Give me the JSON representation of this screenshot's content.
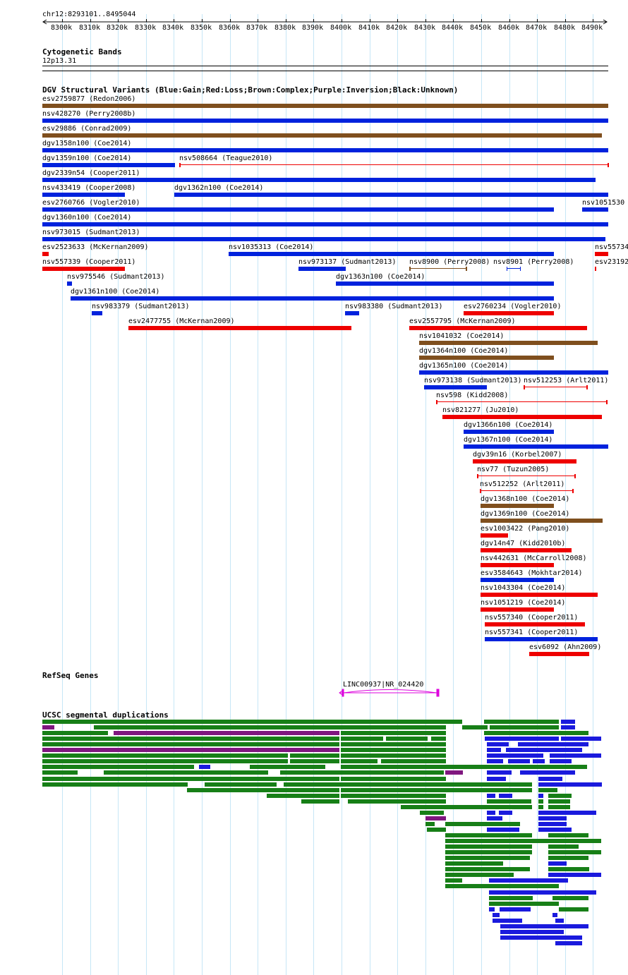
{
  "position_label": "chr12:8293101..8495044",
  "ruler": {
    "ticks": [
      "8300k",
      "8310k",
      "8320k",
      "8330k",
      "8340k",
      "8350k",
      "8360k",
      "8370k",
      "8380k",
      "8390k",
      "8400k",
      "8410k",
      "8420k",
      "8430k",
      "8440k",
      "8450k",
      "8460k",
      "8470k",
      "8480k",
      "8490k"
    ]
  },
  "cytoband": {
    "title": "Cytogenetic Bands",
    "band": "12p13.31"
  },
  "dgv": {
    "title": "DGV Structural Variants (Blue:Gain;Red:Loss;Brown:Complex;Purple:Inversion;Black:Unknown)",
    "colors": {
      "gain": "#0022dd",
      "loss": "#ee0000",
      "complex": "#7f4f1e",
      "inversion": "#800080"
    },
    "variants": [
      {
        "label": "esv2759877 (Redon2006)",
        "type": "complex"
      },
      {
        "label": "nsv428270 (Perry2008b)",
        "type": "gain"
      },
      {
        "label": "esv29886 (Conrad2009)",
        "type": "complex"
      },
      {
        "label": "dgv1358n100 (Coe2014)",
        "type": "gain"
      },
      {
        "label": "dgv1359n100 (Coe2014)",
        "type": "gain"
      },
      {
        "label": "nsv508664 (Teague2010)",
        "type": "loss"
      },
      {
        "label": "dgv2339n54 (Cooper2011)",
        "type": "gain"
      },
      {
        "label": "nsv433419 (Cooper2008)",
        "type": "gain"
      },
      {
        "label": "dgv1362n100 (Coe2014)",
        "type": "gain"
      },
      {
        "label": "esv2760766 (Vogler2010)",
        "type": "gain"
      },
      {
        "label": "nsv1051530",
        "type": "gain"
      },
      {
        "label": "dgv1360n100 (Coe2014)",
        "type": "gain"
      },
      {
        "label": "nsv973015 (Sudmant2013)",
        "type": "gain"
      },
      {
        "label": "esv2523633 (McKernan2009)",
        "type": "loss"
      },
      {
        "label": "nsv1035313 (Coe2014)",
        "type": "gain"
      },
      {
        "label": "nsv55734",
        "type": "loss"
      },
      {
        "label": "nsv557339 (Cooper2011)",
        "type": "loss"
      },
      {
        "label": "nsv973137 (Sudmant2013)",
        "type": "gain"
      },
      {
        "label": "nsv8900 (Perry2008)",
        "type": "complex"
      },
      {
        "label": "nsv8901 (Perry2008)",
        "type": "gain"
      },
      {
        "label": "esv23192",
        "type": "loss"
      },
      {
        "label": "nsv975546 (Sudmant2013)",
        "type": "gain"
      },
      {
        "label": "dgv1363n100 (Coe2014)",
        "type": "gain"
      },
      {
        "label": "dgv1361n100 (Coe2014)",
        "type": "gain"
      },
      {
        "label": "nsv983379 (Sudmant2013)",
        "type": "gain"
      },
      {
        "label": "nsv983380 (Sudmant2013)",
        "type": "gain"
      },
      {
        "label": "esv2760234 (Vogler2010)",
        "type": "loss"
      },
      {
        "label": "esv2477755 (McKernan2009)",
        "type": "loss"
      },
      {
        "label": "esv2557795 (McKernan2009)",
        "type": "loss"
      },
      {
        "label": "nsv1041032 (Coe2014)",
        "type": "complex"
      },
      {
        "label": "dgv1364n100 (Coe2014)",
        "type": "complex"
      },
      {
        "label": "dgv1365n100 (Coe2014)",
        "type": "gain"
      },
      {
        "label": "nsv973138 (Sudmant2013)",
        "type": "gain"
      },
      {
        "label": "nsv512253 (Arlt2011)",
        "type": "loss"
      },
      {
        "label": "nsv598 (Kidd2008)",
        "type": "loss"
      },
      {
        "label": "nsv821277 (Ju2010)",
        "type": "loss"
      },
      {
        "label": "dgv1366n100 (Coe2014)",
        "type": "gain"
      },
      {
        "label": "dgv1367n100 (Coe2014)",
        "type": "gain"
      },
      {
        "label": "dgv39n16 (Korbel2007)",
        "type": "loss"
      },
      {
        "label": "nsv77 (Tuzun2005)",
        "type": "loss"
      },
      {
        "label": "nsv512252 (Arlt2011)",
        "type": "loss"
      },
      {
        "label": "dgv1368n100 (Coe2014)",
        "type": "complex"
      },
      {
        "label": "dgv1369n100 (Coe2014)",
        "type": "complex"
      },
      {
        "label": "esv1003422 (Pang2010)",
        "type": "loss"
      },
      {
        "label": "dgv14n47 (Kidd2010b)",
        "type": "loss"
      },
      {
        "label": "nsv442631 (McCarroll2008)",
        "type": "loss"
      },
      {
        "label": "esv3584643 (Mokhtar2014)",
        "type": "gain"
      },
      {
        "label": "nsv1043304 (Coe2014)",
        "type": "loss"
      },
      {
        "label": "nsv1051219 (Coe2014)",
        "type": "loss"
      },
      {
        "label": "nsv557340 (Cooper2011)",
        "type": "loss"
      },
      {
        "label": "nsv557341 (Cooper2011)",
        "type": "gain"
      },
      {
        "label": "esv6092 (Ahn2009)",
        "type": "loss"
      }
    ]
  },
  "refseq": {
    "title": "RefSeq Genes",
    "gene_label": "LINC00937|NR_024420",
    "gene_color": "#dd00dd"
  },
  "segdups": {
    "title": "UCSC segmental duplications",
    "colors": {
      "green": "#177f17",
      "purple": "#7f177f",
      "blue": "#1a1add"
    }
  }
}
